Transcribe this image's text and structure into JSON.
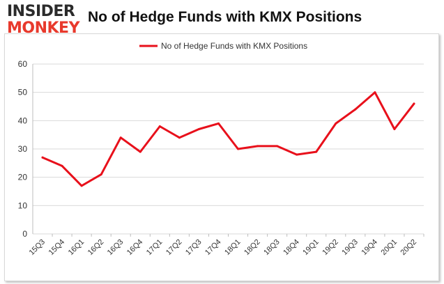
{
  "logo": {
    "line1": "INSIDER",
    "line2": "MONKEY"
  },
  "title": "No of Hedge Funds with KMX Positions",
  "chart_data": {
    "type": "line",
    "title": "No of Hedge Funds with KMX Positions",
    "xlabel": "",
    "ylabel": "",
    "categories": [
      "15Q3",
      "15Q4",
      "16Q1",
      "16Q2",
      "16Q3",
      "16Q4",
      "17Q1",
      "17Q2",
      "17Q3",
      "17Q4",
      "18Q1",
      "18Q2",
      "18Q3",
      "18Q4",
      "19Q1",
      "19Q2",
      "19Q3",
      "19Q4",
      "20Q1",
      "20Q2"
    ],
    "series": [
      {
        "name": "No of Hedge Funds with KMX Positions",
        "values": [
          27,
          24,
          17,
          21,
          34,
          29,
          38,
          34,
          37,
          39,
          30,
          31,
          31,
          28,
          29,
          39,
          44,
          50,
          37,
          46
        ],
        "color": "#e8101b"
      }
    ],
    "ylim": [
      0,
      60
    ],
    "yticks": [
      0,
      10,
      20,
      30,
      40,
      50,
      60
    ],
    "grid": "horizontal",
    "legend": "top-center"
  }
}
